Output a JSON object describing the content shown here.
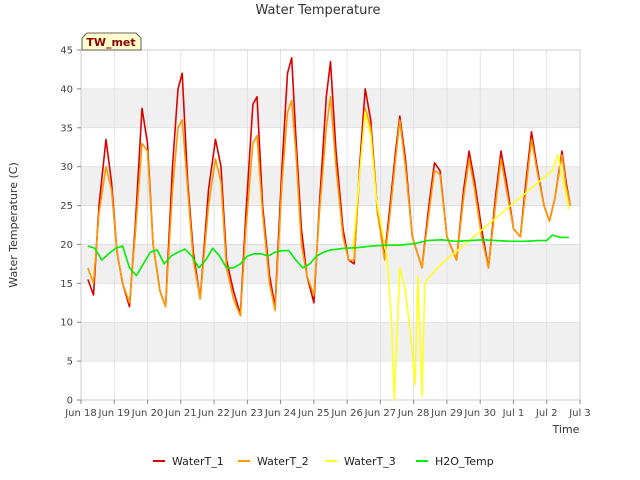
{
  "chart_data": {
    "type": "line",
    "title": "Water Temperature",
    "xlabel": "Time",
    "ylabel": "Water Temperature (C)",
    "site_label": "TW_met",
    "x_ticks": [
      "Jun 18",
      "Jun 19",
      "Jun 20",
      "Jun 21",
      "Jun 22",
      "Jun 23",
      "Jun 24",
      "Jun 25",
      "Jun 26",
      "Jun 27",
      "Jun 28",
      "Jun 29",
      "Jun 30",
      "Jul 1",
      "Jul 2",
      "Jul 3"
    ],
    "y_ticks": [
      0,
      5,
      10,
      15,
      20,
      25,
      30,
      35,
      40,
      45
    ],
    "ylim": [
      0,
      45
    ],
    "xlim_days": [
      0,
      15
    ],
    "grid": true,
    "legend_position": "bottom",
    "series": [
      {
        "name": "WaterT_1",
        "color": "#dd0000",
        "points": [
          [
            0.25,
            15.5
          ],
          [
            0.45,
            13.5
          ],
          [
            0.65,
            25
          ],
          [
            0.9,
            33.5
          ],
          [
            1.1,
            28
          ],
          [
            1.3,
            19
          ],
          [
            1.5,
            15
          ],
          [
            1.75,
            12
          ],
          [
            1.95,
            22
          ],
          [
            2.2,
            37.5
          ],
          [
            2.4,
            33
          ],
          [
            2.6,
            20
          ],
          [
            2.85,
            14
          ],
          [
            3.05,
            12
          ],
          [
            3.3,
            30
          ],
          [
            3.5,
            40
          ],
          [
            3.65,
            42
          ],
          [
            3.85,
            28
          ],
          [
            4.05,
            19
          ],
          [
            4.3,
            13
          ],
          [
            4.6,
            27
          ],
          [
            4.85,
            33.5
          ],
          [
            5.05,
            30
          ],
          [
            5.25,
            18
          ],
          [
            5.5,
            14
          ],
          [
            5.75,
            11
          ],
          [
            5.95,
            24
          ],
          [
            6.2,
            38
          ],
          [
            6.35,
            39
          ],
          [
            6.55,
            25
          ],
          [
            6.8,
            16
          ],
          [
            7.0,
            12
          ],
          [
            7.25,
            30
          ],
          [
            7.45,
            42
          ],
          [
            7.6,
            44
          ],
          [
            7.75,
            34
          ],
          [
            7.95,
            22
          ],
          [
            8.15,
            16
          ],
          [
            8.4,
            12.5
          ],
          [
            8.6,
            25
          ],
          [
            8.85,
            39
          ],
          [
            9.0,
            43.5
          ],
          [
            9.2,
            32
          ],
          [
            9.45,
            22
          ],
          [
            9.65,
            18
          ],
          [
            9.85,
            17.5
          ],
          [
            10.05,
            30
          ],
          [
            10.25,
            40
          ],
          [
            10.45,
            36
          ],
          [
            10.7,
            24
          ],
          [
            10.95,
            18.5
          ],
          [
            11.15,
            25
          ],
          [
            11.35,
            32
          ],
          [
            11.5,
            36.5
          ],
          [
            11.7,
            31
          ],
          [
            11.95,
            21
          ],
          [
            12.3,
            17
          ],
          [
            12.55,
            25
          ],
          [
            12.75,
            30.5
          ],
          [
            12.95,
            29.5
          ],
          [
            13.2,
            21
          ],
          [
            13.55,
            18
          ],
          [
            13.8,
            27
          ],
          [
            14.0,
            32
          ],
          [
            14.2,
            28
          ],
          [
            14.45,
            22
          ],
          [
            14.7,
            17
          ],
          [
            14.95,
            26
          ],
          [
            15.15,
            32
          ],
          [
            15.35,
            28
          ],
          [
            15.6,
            22
          ],
          [
            15.85,
            21
          ],
          [
            16.05,
            28
          ],
          [
            16.25,
            34.5
          ],
          [
            16.45,
            30
          ],
          [
            16.7,
            25
          ],
          [
            16.9,
            23
          ],
          [
            17.1,
            26
          ],
          [
            17.35,
            32
          ],
          [
            17.5,
            28
          ],
          [
            17.65,
            25
          ]
        ]
      },
      {
        "name": "WaterT_2",
        "color": "#ff9900",
        "points": [
          [
            0.25,
            17
          ],
          [
            0.45,
            15
          ],
          [
            0.65,
            24
          ],
          [
            0.9,
            30
          ],
          [
            1.1,
            27
          ],
          [
            1.3,
            19
          ],
          [
            1.5,
            15
          ],
          [
            1.75,
            12.5
          ],
          [
            1.95,
            21
          ],
          [
            2.2,
            33
          ],
          [
            2.4,
            32
          ],
          [
            2.6,
            20
          ],
          [
            2.85,
            14
          ],
          [
            3.05,
            12
          ],
          [
            3.3,
            27
          ],
          [
            3.5,
            35
          ],
          [
            3.65,
            36
          ],
          [
            3.85,
            27
          ],
          [
            4.05,
            18
          ],
          [
            4.3,
            13
          ],
          [
            4.6,
            25
          ],
          [
            4.85,
            31
          ],
          [
            5.05,
            28
          ],
          [
            5.25,
            17
          ],
          [
            5.5,
            13
          ],
          [
            5.75,
            10.8
          ],
          [
            5.95,
            22
          ],
          [
            6.2,
            33
          ],
          [
            6.35,
            34
          ],
          [
            6.55,
            24
          ],
          [
            6.8,
            15
          ],
          [
            7.0,
            11.5
          ],
          [
            7.25,
            28
          ],
          [
            7.45,
            37
          ],
          [
            7.6,
            38.5
          ],
          [
            7.75,
            32
          ],
          [
            7.95,
            20
          ],
          [
            8.15,
            16
          ],
          [
            8.4,
            13.5
          ],
          [
            8.6,
            24
          ],
          [
            8.85,
            35
          ],
          [
            9.0,
            39
          ],
          [
            9.2,
            30
          ],
          [
            9.45,
            21
          ],
          [
            9.65,
            18
          ],
          [
            9.85,
            18
          ],
          [
            10.05,
            29
          ],
          [
            10.25,
            37.5
          ],
          [
            10.45,
            35
          ],
          [
            10.7,
            24
          ],
          [
            10.95,
            18
          ],
          [
            11.15,
            24
          ],
          [
            11.35,
            31
          ],
          [
            11.5,
            36
          ],
          [
            11.7,
            30
          ],
          [
            11.95,
            21
          ],
          [
            12.3,
            17
          ],
          [
            12.55,
            24
          ],
          [
            12.75,
            29.5
          ],
          [
            12.95,
            29
          ],
          [
            13.2,
            21
          ],
          [
            13.55,
            18
          ],
          [
            13.8,
            26
          ],
          [
            14.0,
            31
          ],
          [
            14.2,
            27
          ],
          [
            14.45,
            21
          ],
          [
            14.7,
            17
          ],
          [
            14.95,
            25
          ],
          [
            15.15,
            31
          ],
          [
            15.35,
            27
          ],
          [
            15.6,
            22
          ],
          [
            15.85,
            21
          ],
          [
            16.05,
            27
          ],
          [
            16.25,
            33.5
          ],
          [
            16.45,
            29.5
          ],
          [
            16.7,
            25
          ],
          [
            16.9,
            23
          ],
          [
            17.1,
            26
          ],
          [
            17.35,
            31.5
          ],
          [
            17.5,
            27.5
          ],
          [
            17.65,
            25
          ]
        ]
      },
      {
        "name": "WaterT_3",
        "color": "#ffff22",
        "points": [
          [
            9.8,
            19
          ],
          [
            10.05,
            29
          ],
          [
            10.25,
            37
          ],
          [
            10.45,
            34
          ],
          [
            10.65,
            26
          ],
          [
            10.85,
            22
          ],
          [
            11.05,
            18
          ],
          [
            11.2,
            10
          ],
          [
            11.3,
            0
          ],
          [
            11.5,
            17
          ],
          [
            11.7,
            14
          ],
          [
            11.9,
            8
          ],
          [
            12.05,
            2
          ],
          [
            12.15,
            16
          ],
          [
            12.3,
            0.5
          ],
          [
            12.4,
            15
          ],
          [
            12.6,
            16
          ],
          [
            13.0,
            17.5
          ],
          [
            13.5,
            19
          ],
          [
            14.0,
            20.5
          ],
          [
            14.5,
            22
          ],
          [
            15.0,
            23.5
          ],
          [
            15.5,
            25
          ],
          [
            16.0,
            26.5
          ],
          [
            16.5,
            28
          ],
          [
            17.0,
            29.5
          ],
          [
            17.2,
            31.5
          ],
          [
            17.4,
            28
          ],
          [
            17.6,
            24.5
          ]
        ]
      },
      {
        "name": "H2O_Temp",
        "color": "#00ee00",
        "points": [
          [
            0.25,
            19.8
          ],
          [
            0.5,
            19.5
          ],
          [
            0.75,
            18
          ],
          [
            1.0,
            18.8
          ],
          [
            1.25,
            19.5
          ],
          [
            1.5,
            19.8
          ],
          [
            1.75,
            17
          ],
          [
            2.0,
            16
          ],
          [
            2.25,
            17.5
          ],
          [
            2.5,
            19
          ],
          [
            2.75,
            19.3
          ],
          [
            3.0,
            17.5
          ],
          [
            3.25,
            18.5
          ],
          [
            3.5,
            19
          ],
          [
            3.75,
            19.4
          ],
          [
            4.0,
            18.5
          ],
          [
            4.25,
            17
          ],
          [
            4.5,
            18
          ],
          [
            4.75,
            19.5
          ],
          [
            5.0,
            18.5
          ],
          [
            5.25,
            17
          ],
          [
            5.5,
            17
          ],
          [
            5.75,
            17.5
          ],
          [
            6.0,
            18.5
          ],
          [
            6.25,
            18.8
          ],
          [
            6.5,
            18.8
          ],
          [
            6.75,
            18.5
          ],
          [
            7.0,
            19
          ],
          [
            7.25,
            19.2
          ],
          [
            7.5,
            19.2
          ],
          [
            7.75,
            18
          ],
          [
            8.0,
            17
          ],
          [
            8.25,
            17.5
          ],
          [
            8.5,
            18.5
          ],
          [
            8.75,
            19
          ],
          [
            9.0,
            19.3
          ],
          [
            9.5,
            19.5
          ],
          [
            10.0,
            19.6
          ],
          [
            10.5,
            19.8
          ],
          [
            11.0,
            19.9
          ],
          [
            11.5,
            19.9
          ],
          [
            12.0,
            20.1
          ],
          [
            12.5,
            20.5
          ],
          [
            13.0,
            20.6
          ],
          [
            13.5,
            20.4
          ],
          [
            14.0,
            20.5
          ],
          [
            14.5,
            20.6
          ],
          [
            15.0,
            20.5
          ],
          [
            15.5,
            20.4
          ],
          [
            16.0,
            20.4
          ],
          [
            16.5,
            20.5
          ],
          [
            16.8,
            20.5
          ],
          [
            17.0,
            21.2
          ],
          [
            17.3,
            20.9
          ],
          [
            17.6,
            20.9
          ]
        ]
      }
    ]
  }
}
